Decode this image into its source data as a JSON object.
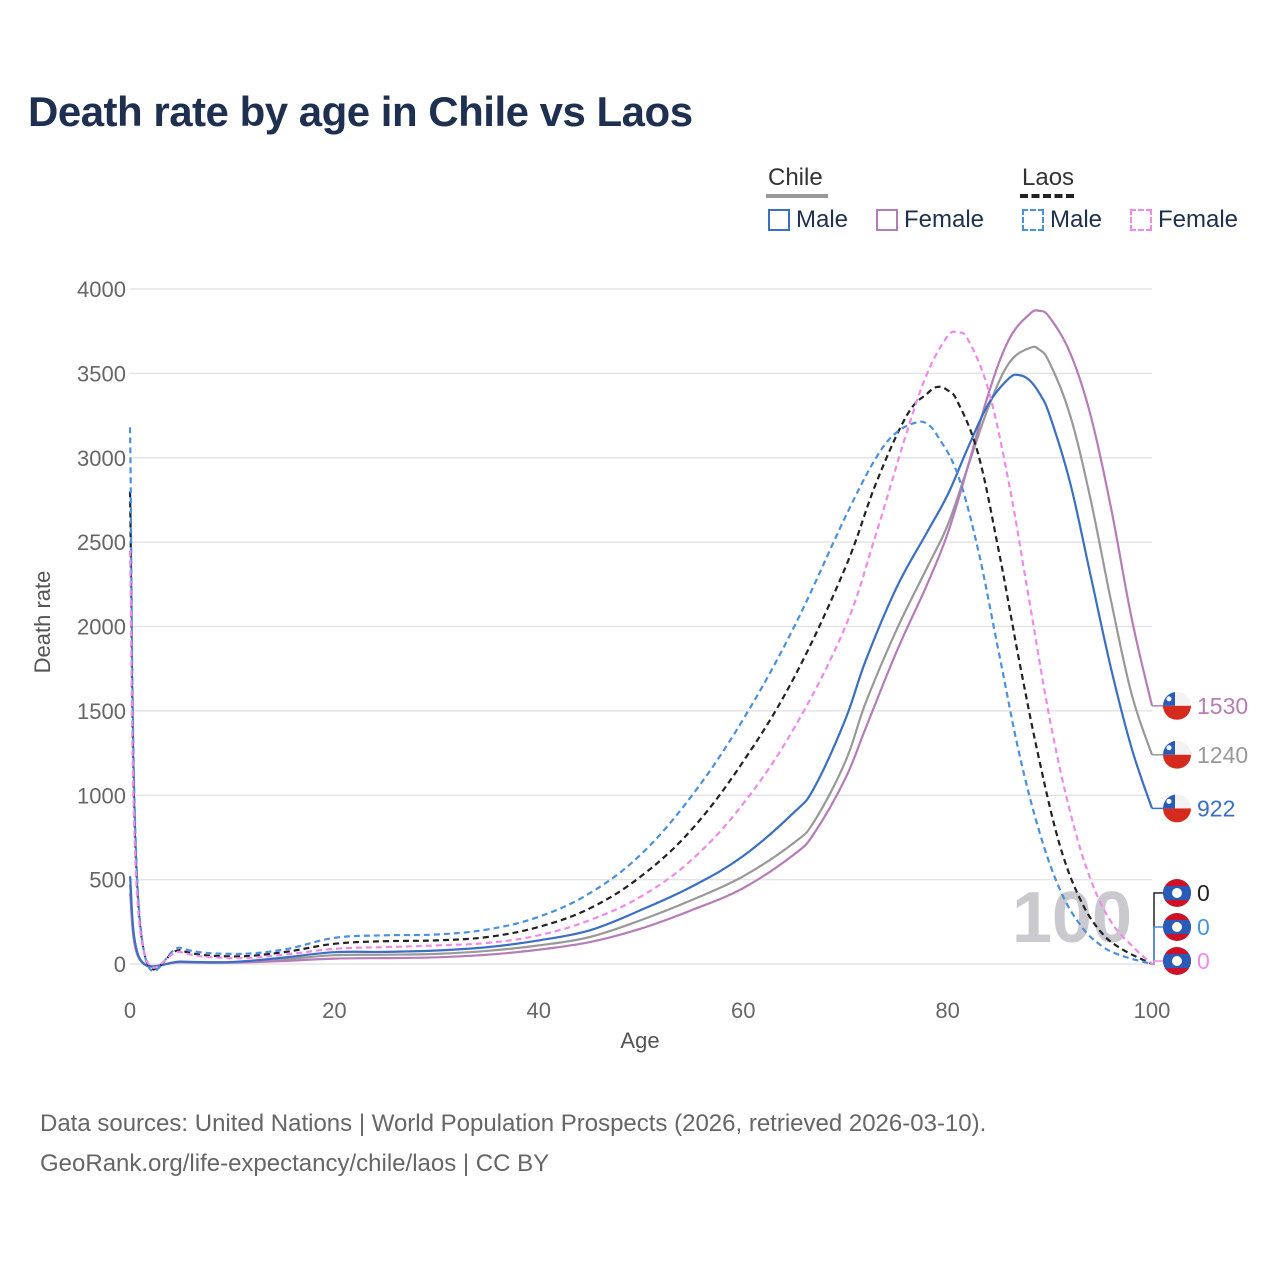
{
  "title": "Death rate by age in Chile vs Laos",
  "legend": {
    "groups": [
      {
        "title": "Chile",
        "color": "#999999",
        "dash": false,
        "items": [
          {
            "label": "Male",
            "color": "#3b6fc4"
          },
          {
            "label": "Female",
            "color": "#b67cb8"
          }
        ]
      },
      {
        "title": "Laos",
        "color": "#222222",
        "dash": true,
        "items": [
          {
            "label": "Male",
            "color": "#4a90e2"
          },
          {
            "label": "Female",
            "color": "#f08ae8"
          }
        ]
      }
    ]
  },
  "chart_data": {
    "type": "line",
    "xlabel": "Age",
    "ylabel": "Death rate",
    "xlim": [
      0,
      100
    ],
    "ylim": [
      0,
      4000
    ],
    "x_ticks": [
      0,
      20,
      40,
      60,
      80,
      100
    ],
    "y_ticks": [
      0,
      500,
      1000,
      1500,
      2000,
      2500,
      3000,
      3500,
      4000
    ],
    "year_watermark": "100",
    "series": [
      {
        "name": "Chile Total",
        "color": "#999999",
        "dash": false,
        "end_label": "1240",
        "points": [
          [
            0,
            470
          ],
          [
            1,
            25
          ],
          [
            5,
            12
          ],
          [
            10,
            10
          ],
          [
            15,
            28
          ],
          [
            20,
            52
          ],
          [
            25,
            55
          ],
          [
            30,
            60
          ],
          [
            35,
            78
          ],
          [
            40,
            110
          ],
          [
            45,
            160
          ],
          [
            50,
            260
          ],
          [
            55,
            380
          ],
          [
            60,
            520
          ],
          [
            65,
            720
          ],
          [
            67,
            850
          ],
          [
            70,
            1200
          ],
          [
            72,
            1550
          ],
          [
            75,
            1980
          ],
          [
            78,
            2350
          ],
          [
            80,
            2600
          ],
          [
            82,
            2950
          ],
          [
            84,
            3300
          ],
          [
            86,
            3560
          ],
          [
            88,
            3650
          ],
          [
            89,
            3640
          ],
          [
            90,
            3560
          ],
          [
            92,
            3250
          ],
          [
            94,
            2750
          ],
          [
            96,
            2150
          ],
          [
            98,
            1600
          ],
          [
            100,
            1240
          ]
        ]
      },
      {
        "name": "Chile Female",
        "color": "#b67cb8",
        "dash": false,
        "end_label": "1530",
        "points": [
          [
            0,
            420
          ],
          [
            1,
            22
          ],
          [
            5,
            10
          ],
          [
            10,
            8
          ],
          [
            15,
            18
          ],
          [
            20,
            32
          ],
          [
            25,
            35
          ],
          [
            30,
            40
          ],
          [
            35,
            55
          ],
          [
            40,
            85
          ],
          [
            45,
            130
          ],
          [
            50,
            210
          ],
          [
            55,
            320
          ],
          [
            60,
            450
          ],
          [
            65,
            650
          ],
          [
            67,
            780
          ],
          [
            70,
            1100
          ],
          [
            72,
            1400
          ],
          [
            75,
            1850
          ],
          [
            78,
            2250
          ],
          [
            80,
            2550
          ],
          [
            82,
            2950
          ],
          [
            84,
            3380
          ],
          [
            86,
            3700
          ],
          [
            88,
            3850
          ],
          [
            89,
            3870
          ],
          [
            90,
            3830
          ],
          [
            92,
            3620
          ],
          [
            94,
            3250
          ],
          [
            96,
            2700
          ],
          [
            98,
            2050
          ],
          [
            100,
            1530
          ]
        ]
      },
      {
        "name": "Chile Male",
        "color": "#3b6fc4",
        "dash": false,
        "end_label": "922",
        "points": [
          [
            0,
            520
          ],
          [
            1,
            28
          ],
          [
            5,
            14
          ],
          [
            10,
            12
          ],
          [
            15,
            38
          ],
          [
            20,
            70
          ],
          [
            25,
            72
          ],
          [
            30,
            80
          ],
          [
            35,
            100
          ],
          [
            40,
            140
          ],
          [
            45,
            200
          ],
          [
            50,
            320
          ],
          [
            55,
            460
          ],
          [
            60,
            640
          ],
          [
            65,
            900
          ],
          [
            67,
            1050
          ],
          [
            70,
            1450
          ],
          [
            72,
            1800
          ],
          [
            75,
            2230
          ],
          [
            78,
            2560
          ],
          [
            80,
            2780
          ],
          [
            82,
            3060
          ],
          [
            84,
            3320
          ],
          [
            86,
            3470
          ],
          [
            87,
            3490
          ],
          [
            88,
            3460
          ],
          [
            89,
            3380
          ],
          [
            90,
            3250
          ],
          [
            92,
            2850
          ],
          [
            94,
            2300
          ],
          [
            96,
            1750
          ],
          [
            98,
            1280
          ],
          [
            100,
            922
          ]
        ]
      },
      {
        "name": "Laos Total",
        "color": "#222222",
        "dash": true,
        "end_label": "0",
        "points": [
          [
            0,
            2800
          ],
          [
            1,
            220
          ],
          [
            5,
            80
          ],
          [
            10,
            45
          ],
          [
            15,
            70
          ],
          [
            20,
            120
          ],
          [
            25,
            135
          ],
          [
            30,
            140
          ],
          [
            35,
            160
          ],
          [
            40,
            220
          ],
          [
            45,
            330
          ],
          [
            50,
            520
          ],
          [
            55,
            800
          ],
          [
            60,
            1200
          ],
          [
            65,
            1700
          ],
          [
            70,
            2350
          ],
          [
            73,
            2850
          ],
          [
            76,
            3250
          ],
          [
            78,
            3380
          ],
          [
            79,
            3420
          ],
          [
            80,
            3400
          ],
          [
            81,
            3330
          ],
          [
            83,
            3020
          ],
          [
            85,
            2450
          ],
          [
            87,
            1800
          ],
          [
            89,
            1200
          ],
          [
            91,
            700
          ],
          [
            93,
            380
          ],
          [
            95,
            190
          ],
          [
            97,
            90
          ],
          [
            100,
            0
          ]
        ]
      },
      {
        "name": "Laos Male",
        "color": "#4a90e2",
        "dash": true,
        "end_label": "0",
        "points": [
          [
            0,
            3180
          ],
          [
            1,
            240
          ],
          [
            5,
            95
          ],
          [
            10,
            60
          ],
          [
            15,
            85
          ],
          [
            20,
            155
          ],
          [
            25,
            170
          ],
          [
            30,
            175
          ],
          [
            35,
            205
          ],
          [
            40,
            280
          ],
          [
            45,
            420
          ],
          [
            50,
            650
          ],
          [
            55,
            1000
          ],
          [
            60,
            1450
          ],
          [
            65,
            2000
          ],
          [
            70,
            2650
          ],
          [
            73,
            3000
          ],
          [
            75,
            3150
          ],
          [
            77,
            3210
          ],
          [
            78,
            3200
          ],
          [
            79,
            3130
          ],
          [
            81,
            2900
          ],
          [
            83,
            2450
          ],
          [
            85,
            1850
          ],
          [
            87,
            1250
          ],
          [
            89,
            780
          ],
          [
            91,
            440
          ],
          [
            93,
            230
          ],
          [
            95,
            110
          ],
          [
            97,
            50
          ],
          [
            100,
            0
          ]
        ]
      },
      {
        "name": "Laos Female",
        "color": "#f08ae8",
        "dash": true,
        "end_label": "0",
        "points": [
          [
            0,
            2450
          ],
          [
            1,
            200
          ],
          [
            5,
            70
          ],
          [
            10,
            35
          ],
          [
            15,
            55
          ],
          [
            20,
            90
          ],
          [
            25,
            100
          ],
          [
            30,
            110
          ],
          [
            35,
            125
          ],
          [
            40,
            170
          ],
          [
            45,
            260
          ],
          [
            50,
            400
          ],
          [
            55,
            620
          ],
          [
            60,
            950
          ],
          [
            65,
            1400
          ],
          [
            70,
            2000
          ],
          [
            73,
            2550
          ],
          [
            76,
            3150
          ],
          [
            78,
            3500
          ],
          [
            80,
            3720
          ],
          [
            81,
            3740
          ],
          [
            82,
            3700
          ],
          [
            84,
            3400
          ],
          [
            86,
            2850
          ],
          [
            88,
            2150
          ],
          [
            90,
            1450
          ],
          [
            92,
            900
          ],
          [
            94,
            500
          ],
          [
            96,
            250
          ],
          [
            98,
            110
          ],
          [
            100,
            0
          ]
        ]
      }
    ]
  },
  "source": {
    "line1": "Data sources: United Nations | World Population Prospects (2026, retrieved 2026-03-10).",
    "line2": "GeoRank.org/life-expectancy/chile/laos | CC BY"
  }
}
